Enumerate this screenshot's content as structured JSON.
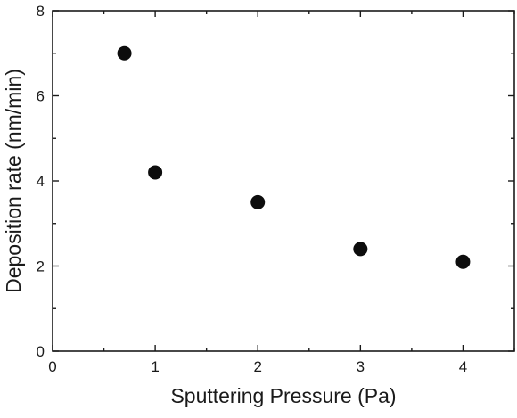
{
  "chart_data": {
    "type": "scatter",
    "title": "",
    "xlabel": "Sputtering Pressure (Pa)",
    "ylabel": "Deposition rate (nm/min)",
    "xlim": [
      0,
      4.5
    ],
    "ylim": [
      0,
      8
    ],
    "x_ticks": [
      0,
      1,
      2,
      3,
      4
    ],
    "y_ticks": [
      0,
      2,
      4,
      6,
      8
    ],
    "x_tick_labels": [
      "0",
      "1",
      "2",
      "3",
      "4"
    ],
    "y_tick_labels": [
      "0",
      "2",
      "4",
      "6",
      "8"
    ],
    "grid": false,
    "legend": "none",
    "marker_color": "#0d0d0d",
    "axis_color": "#1a1a1a",
    "series": [
      {
        "x": [
          0.7,
          1.0,
          2.0,
          3.0,
          4.0
        ],
        "y": [
          7.0,
          4.2,
          3.5,
          2.4,
          2.1
        ]
      }
    ]
  }
}
